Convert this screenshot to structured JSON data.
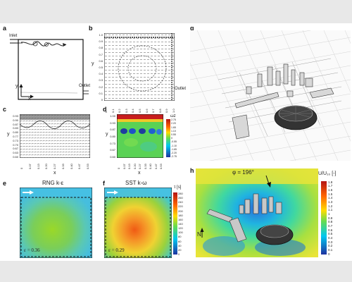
{
  "panel_labels": {
    "a": "a",
    "b": "b",
    "c": "c",
    "d": "d",
    "e": "e",
    "f": "f",
    "g": "g",
    "h": "h"
  },
  "panel_a": {
    "inlet": "Inlet",
    "outlet": "Outlet",
    "axis_y": "y",
    "axis_x": "x"
  },
  "panel_b": {
    "outlet": "Outlet",
    "ylabel": "y",
    "xlabel": "x",
    "yticks": [
      "1.0",
      "0.9",
      "0.8",
      "0.7",
      "0.6",
      "0.5",
      "0.4",
      "0.3",
      "0.2",
      "0.1",
      "0"
    ],
    "xticks": [
      "0",
      "0.1",
      "0.2",
      "0.3",
      "0.4",
      "0.5",
      "0.6",
      "0.7",
      "0.8",
      "0.9",
      "1.0"
    ]
  },
  "panel_c": {
    "ylabel": "y",
    "xlabel": "x",
    "yticks": [
      "0.93",
      "0.90",
      "0.87",
      "0.83",
      "0.80",
      "0.77",
      "0.73",
      "0.70",
      "0.67",
      "0.63",
      "0.60"
    ],
    "xticks": [
      "0",
      "0.07",
      "0.13",
      "0.20",
      "0.27",
      "0.33",
      "0.40",
      "0.47",
      "0.53"
    ]
  },
  "panel_d": {
    "ylabel": "y",
    "xlabel": "x",
    "cbar_title": "ωz",
    "cbar_ticks": [
      "2.75",
      "2.20",
      "1.65",
      "1.10",
      "0.55",
      "0",
      "-0.55",
      "-1.10",
      "-1.65",
      "-2.20",
      "-2.75"
    ],
    "yticks": [
      "1.00",
      "0.93",
      "0.87",
      "0.80",
      "0.73",
      "0.67",
      "0.60"
    ],
    "xticks": [
      "0",
      "0.07",
      "0.13",
      "0.20",
      "0.27",
      "0.33",
      "0.40",
      "0.47",
      "0.53"
    ]
  },
  "panel_e": {
    "title": "RNG k-ε",
    "eps": "ε = 0.36"
  },
  "panel_f": {
    "title": "SST k-ω",
    "eps": "ε = 0.29",
    "cbar_title": "τ [s]",
    "cbar_ticks": [
      "280",
      "260",
      "240",
      "220",
      "200",
      "180",
      "160",
      "140",
      "120",
      "100",
      "80",
      "60",
      "40",
      "20",
      "0"
    ]
  },
  "panel_h": {
    "wind_dir": "φ = 196°",
    "cbar_title": "U/U₁₀ [-]",
    "north": "N",
    "cbar_ticks": [
      "1.8",
      "1.7",
      "1.6",
      "1.5",
      "1.4",
      "1.3",
      "1.2",
      "1.1",
      "1",
      "0.9",
      "0.8",
      "0.7",
      "0.6",
      "0.5",
      "0.4",
      "0.3",
      "0.2",
      "0.1",
      "0"
    ]
  },
  "colors": {
    "jet_red": "#c81e1e",
    "jet_blue": "#1e3ca0",
    "page_bg": "#e8e8e8"
  }
}
